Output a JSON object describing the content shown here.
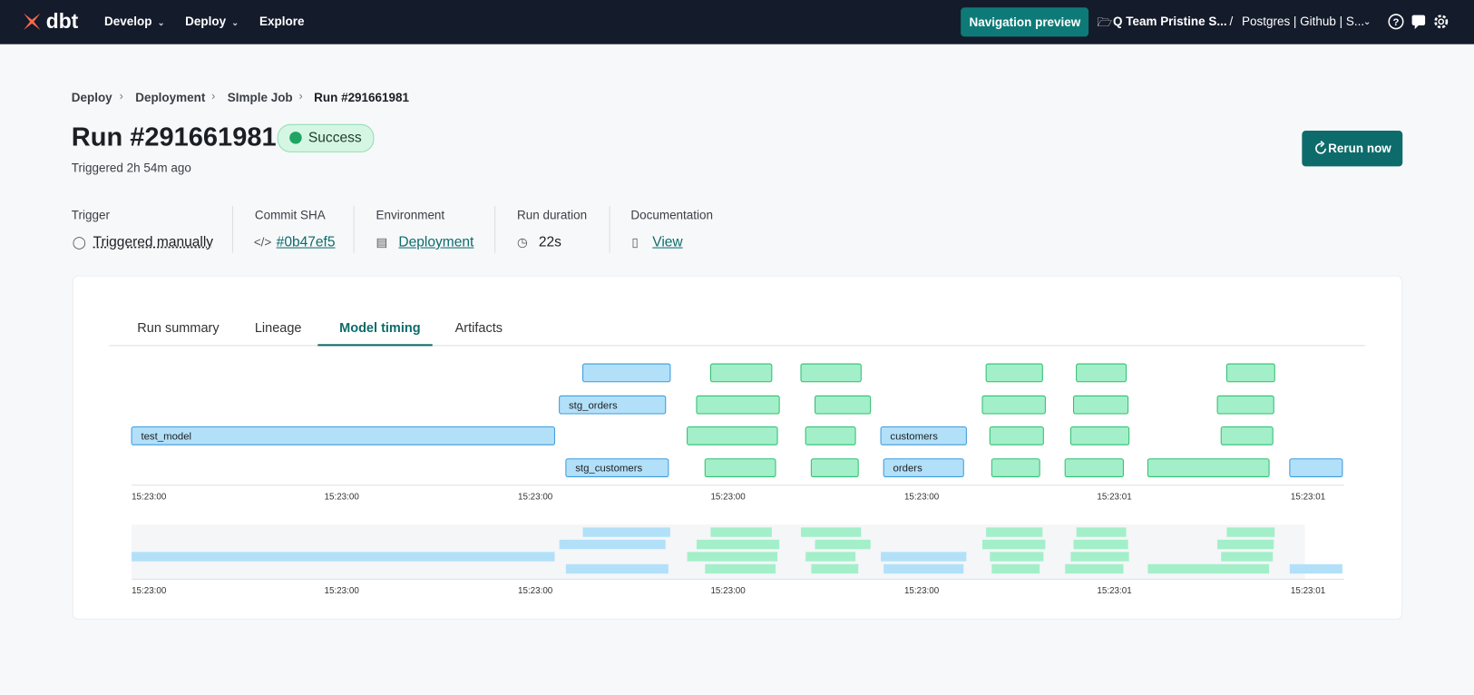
{
  "nav": {
    "logo": "dbt",
    "items": [
      "Develop",
      "Deploy",
      "Explore"
    ],
    "preview": "Navigation preview",
    "project": "Q Team Pristine S...",
    "separator": "/",
    "environment": "Postgres | Github | S..."
  },
  "breadcrumb": [
    "Deploy",
    "Deployment",
    "SImple Job",
    "Run #291661981"
  ],
  "header": {
    "title": "Run #291661981",
    "status": "Success",
    "triggered": "Triggered 2h 54m ago",
    "rerun": "Rerun now"
  },
  "meta": [
    {
      "label": "Trigger",
      "value": "Triggered manually"
    },
    {
      "label": "Commit SHA",
      "value": "#0b47ef5"
    },
    {
      "label": "Environment",
      "value": "Deployment"
    },
    {
      "label": "Run duration",
      "value": "22s"
    },
    {
      "label": "Documentation",
      "value": "View"
    }
  ],
  "tabs": [
    "Run summary",
    "Lineage",
    "Model timing",
    "Artifacts"
  ],
  "active_tab": 2,
  "timeline": {
    "labels": [
      "test_model",
      "stg_orders",
      "customers",
      "stg_customers",
      "orders"
    ],
    "ticks": [
      "15:23:00",
      "15:23:00",
      "15:23:00",
      "15:23:00",
      "15:23:00",
      "15:23:01",
      "15:23:01"
    ]
  }
}
